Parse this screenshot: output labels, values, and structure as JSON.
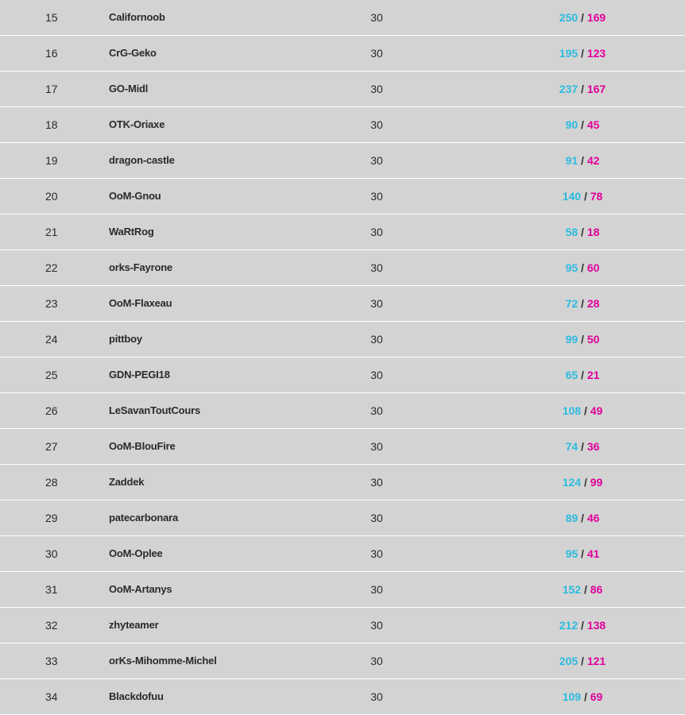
{
  "colors": {
    "kills": "#2bbbe0",
    "deaths": "#e0009a",
    "row_bg": "#d3d3d3",
    "separator": "#ffffff"
  },
  "separator": "/",
  "rows": [
    {
      "rank": "15",
      "name": "Californoob",
      "games": "30",
      "kills": "250",
      "deaths": "169"
    },
    {
      "rank": "16",
      "name": "CrG-Geko",
      "games": "30",
      "kills": "195",
      "deaths": "123"
    },
    {
      "rank": "17",
      "name": "GO-Midl",
      "games": "30",
      "kills": "237",
      "deaths": "167"
    },
    {
      "rank": "18",
      "name": "OTK-Oriaxe",
      "games": "30",
      "kills": "90",
      "deaths": "45"
    },
    {
      "rank": "19",
      "name": "dragon-castle",
      "games": "30",
      "kills": "91",
      "deaths": "42"
    },
    {
      "rank": "20",
      "name": "OoM-Gnou",
      "games": "30",
      "kills": "140",
      "deaths": "78"
    },
    {
      "rank": "21",
      "name": "WaRtRog",
      "games": "30",
      "kills": "58",
      "deaths": "18"
    },
    {
      "rank": "22",
      "name": "orks-Fayrone",
      "games": "30",
      "kills": "95",
      "deaths": "60"
    },
    {
      "rank": "23",
      "name": "OoM-Flaxeau",
      "games": "30",
      "kills": "72",
      "deaths": "28"
    },
    {
      "rank": "24",
      "name": "pittboy",
      "games": "30",
      "kills": "99",
      "deaths": "50"
    },
    {
      "rank": "25",
      "name": "GDN-PEGI18",
      "games": "30",
      "kills": "65",
      "deaths": "21"
    },
    {
      "rank": "26",
      "name": "LeSavanToutCours",
      "games": "30",
      "kills": "108",
      "deaths": "49"
    },
    {
      "rank": "27",
      "name": "OoM-BlouFire",
      "games": "30",
      "kills": "74",
      "deaths": "36"
    },
    {
      "rank": "28",
      "name": "Zaddek",
      "games": "30",
      "kills": "124",
      "deaths": "99"
    },
    {
      "rank": "29",
      "name": "patecarbonara",
      "games": "30",
      "kills": "89",
      "deaths": "46"
    },
    {
      "rank": "30",
      "name": "OoM-Oplee",
      "games": "30",
      "kills": "95",
      "deaths": "41"
    },
    {
      "rank": "31",
      "name": "OoM-Artanys",
      "games": "30",
      "kills": "152",
      "deaths": "86"
    },
    {
      "rank": "32",
      "name": "zhyteamer",
      "games": "30",
      "kills": "212",
      "deaths": "138"
    },
    {
      "rank": "33",
      "name": "orKs-Mihomme-Michel",
      "games": "30",
      "kills": "205",
      "deaths": "121"
    },
    {
      "rank": "34",
      "name": "Blackdofuu",
      "games": "30",
      "kills": "109",
      "deaths": "69"
    }
  ]
}
